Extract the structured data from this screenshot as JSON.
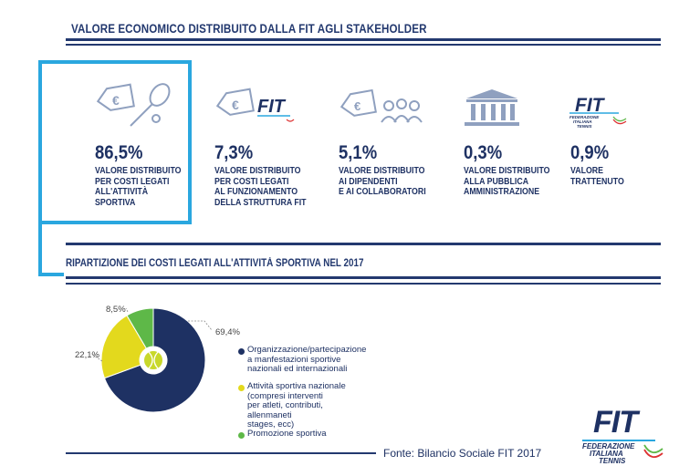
{
  "header": {
    "title": "VALORE ECONOMICO DISTRIBUITO DALLA FIT AGLI STAKEHOLDER"
  },
  "stats": [
    {
      "percent": "86,5%",
      "label": "VALORE DISTRIBUITO\nPER COSTI LEGATI\nALL'ATTIVITÀ\nSPORTIVA",
      "icon": "euro-tag-racket-icon"
    },
    {
      "percent": "7,3%",
      "label": "VALORE DISTRIBUITO\nPER COSTI LEGATI\nAL FUNZIONAMENTO\nDELLA STRUTTURA FIT",
      "icon": "euro-tag-fit-icon"
    },
    {
      "percent": "5,1%",
      "label": "VALORE DISTRIBUITO\nAI DIPENDENTI\nE AI COLLABORATORI",
      "icon": "euro-tag-people-icon"
    },
    {
      "percent": "0,3%",
      "label": "VALORE DISTRIBUITO\nALLA PUBBLICA\nAMMINISTRAZIONE",
      "icon": "government-building-icon"
    },
    {
      "percent": "0,9%",
      "label": "VALORE\nTRATTENUTO",
      "icon": "fit-logo-icon"
    }
  ],
  "logo": {
    "brand": "FIT",
    "line1": "FEDERAZIONE",
    "line2": "ITALIANA",
    "line3": "TENNIS"
  },
  "source": "Fonte: Bilancio Sociale FIT 2017",
  "colors": {
    "navy": "#1e3163",
    "yellow": "#e3d91d",
    "green": "#5eb848",
    "accent": "#2aa7df"
  },
  "chart_data": {
    "type": "pie",
    "title": "RIPARTIZIONE DEI COSTI LEGATI ALL'ATTIVITÀ SPORTIVA NEL 2017",
    "labels": [
      "Organizzazione/partecipazione\na manfestazioni sportive\nnazionali ed internazionali",
      "Attività sportiva nazionale\n(compresi interventi\nper atleti, contributi,\nallenmaneti\nstages, ecc)",
      "Promozione sportiva"
    ],
    "values": [
      69.4,
      22.1,
      8.5
    ],
    "value_labels": [
      "69,4%",
      "22,1%",
      "8,5%"
    ],
    "colors": [
      "#1e3163",
      "#e3d91d",
      "#5eb848"
    ],
    "legend": "right"
  }
}
